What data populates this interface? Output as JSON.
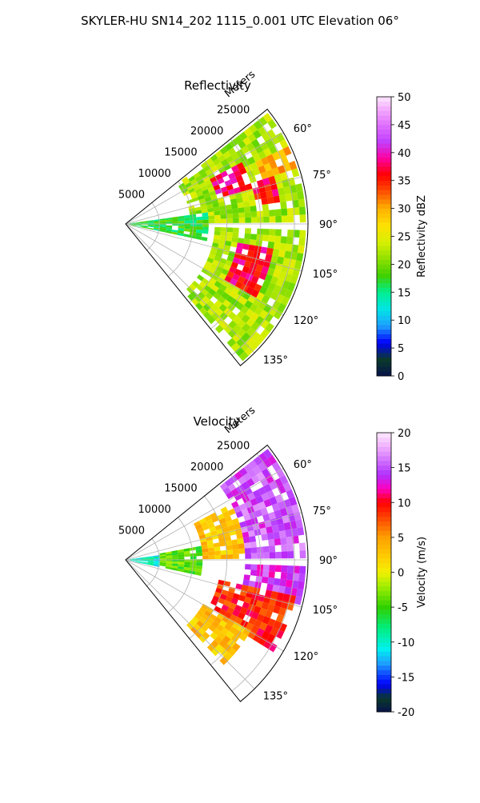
{
  "figure": {
    "suptitle": "SKYLER-HU  SN14_202  1115_0.001 UTC Elevation 06°"
  },
  "chart_data": [
    {
      "type": "heatmap",
      "projection": "polar-sector",
      "title": "Reflectivity",
      "radial_label": "Meters",
      "radial_ticks": [
        5000,
        10000,
        15000,
        20000,
        25000
      ],
      "radial_tick_labels": [
        "5000",
        "10000",
        "15000",
        "20000",
        "25000"
      ],
      "radial_range": [
        0,
        27000
      ],
      "angle_range_deg": [
        51,
        141
      ],
      "angle_ticks_deg": [
        60,
        75,
        90,
        105,
        120,
        135
      ],
      "angle_tick_labels": [
        "60°",
        "75°",
        "90°",
        "105°",
        "120°",
        "135°"
      ],
      "grid": true,
      "colorbar": {
        "label": "Reflectivity dBZ",
        "range": [
          0,
          50
        ],
        "ticks": [
          0,
          5,
          10,
          15,
          20,
          25,
          30,
          35,
          40,
          45,
          50
        ],
        "tick_labels": [
          "0",
          "5",
          "10",
          "15",
          "20",
          "25",
          "30",
          "35",
          "40",
          "45",
          "50"
        ]
      },
      "regions": [
        {
          "az": [
            52,
            88
          ],
          "r": [
            9500,
            27000
          ],
          "value": 22
        },
        {
          "az": [
            92,
            138
          ],
          "r": [
            13000,
            26000
          ],
          "value": 22
        },
        {
          "az": [
            60,
            74
          ],
          "r": [
            13500,
            19000
          ],
          "value": 38
        },
        {
          "az": [
            70,
            80
          ],
          "r": [
            19000,
            22500
          ],
          "value": 36
        },
        {
          "az": [
            98,
            118
          ],
          "r": [
            16000,
            22000
          ],
          "value": 37
        },
        {
          "az": [
            80,
            100
          ],
          "r": [
            0,
            12000
          ],
          "value": 17
        },
        {
          "az": [
            63,
            72
          ],
          "r": [
            21000,
            26500
          ],
          "value": 30
        }
      ]
    },
    {
      "type": "heatmap",
      "projection": "polar-sector",
      "title": "Velocity",
      "radial_label": "Meters",
      "radial_ticks": [
        5000,
        10000,
        15000,
        20000,
        25000
      ],
      "radial_tick_labels": [
        "5000",
        "10000",
        "15000",
        "20000",
        "25000"
      ],
      "radial_range": [
        0,
        27000
      ],
      "angle_range_deg": [
        51,
        141
      ],
      "angle_ticks_deg": [
        60,
        75,
        90,
        105,
        120,
        135
      ],
      "angle_tick_labels": [
        "60°",
        "75°",
        "90°",
        "105°",
        "120°",
        "135°"
      ],
      "grid": true,
      "colorbar": {
        "label": "Velocity (m/s)",
        "range": [
          -20,
          20
        ],
        "ticks": [
          -20,
          -15,
          -10,
          -5,
          0,
          5,
          10,
          15,
          20
        ],
        "tick_labels": [
          "-20",
          "-15",
          "-10",
          "-5",
          "0",
          "5",
          "10",
          "15",
          "20"
        ]
      },
      "regions": [
        {
          "az": [
            52,
            88
          ],
          "r": [
            17000,
            27000
          ],
          "value": 15
        },
        {
          "az": [
            60,
            88
          ],
          "r": [
            11000,
            17000
          ],
          "value": 3
        },
        {
          "az": [
            80,
            100
          ],
          "r": [
            0,
            5000
          ],
          "value": -10
        },
        {
          "az": [
            78,
            102
          ],
          "r": [
            5000,
            11000
          ],
          "value": -4
        },
        {
          "az": [
            92,
            104
          ],
          "r": [
            17000,
            26000
          ],
          "value": 14
        },
        {
          "az": [
            100,
            122
          ],
          "r": [
            14000,
            25000
          ],
          "value": 9
        },
        {
          "az": [
            118,
            136
          ],
          "r": [
            13000,
            21000
          ],
          "value": 3
        }
      ]
    }
  ]
}
